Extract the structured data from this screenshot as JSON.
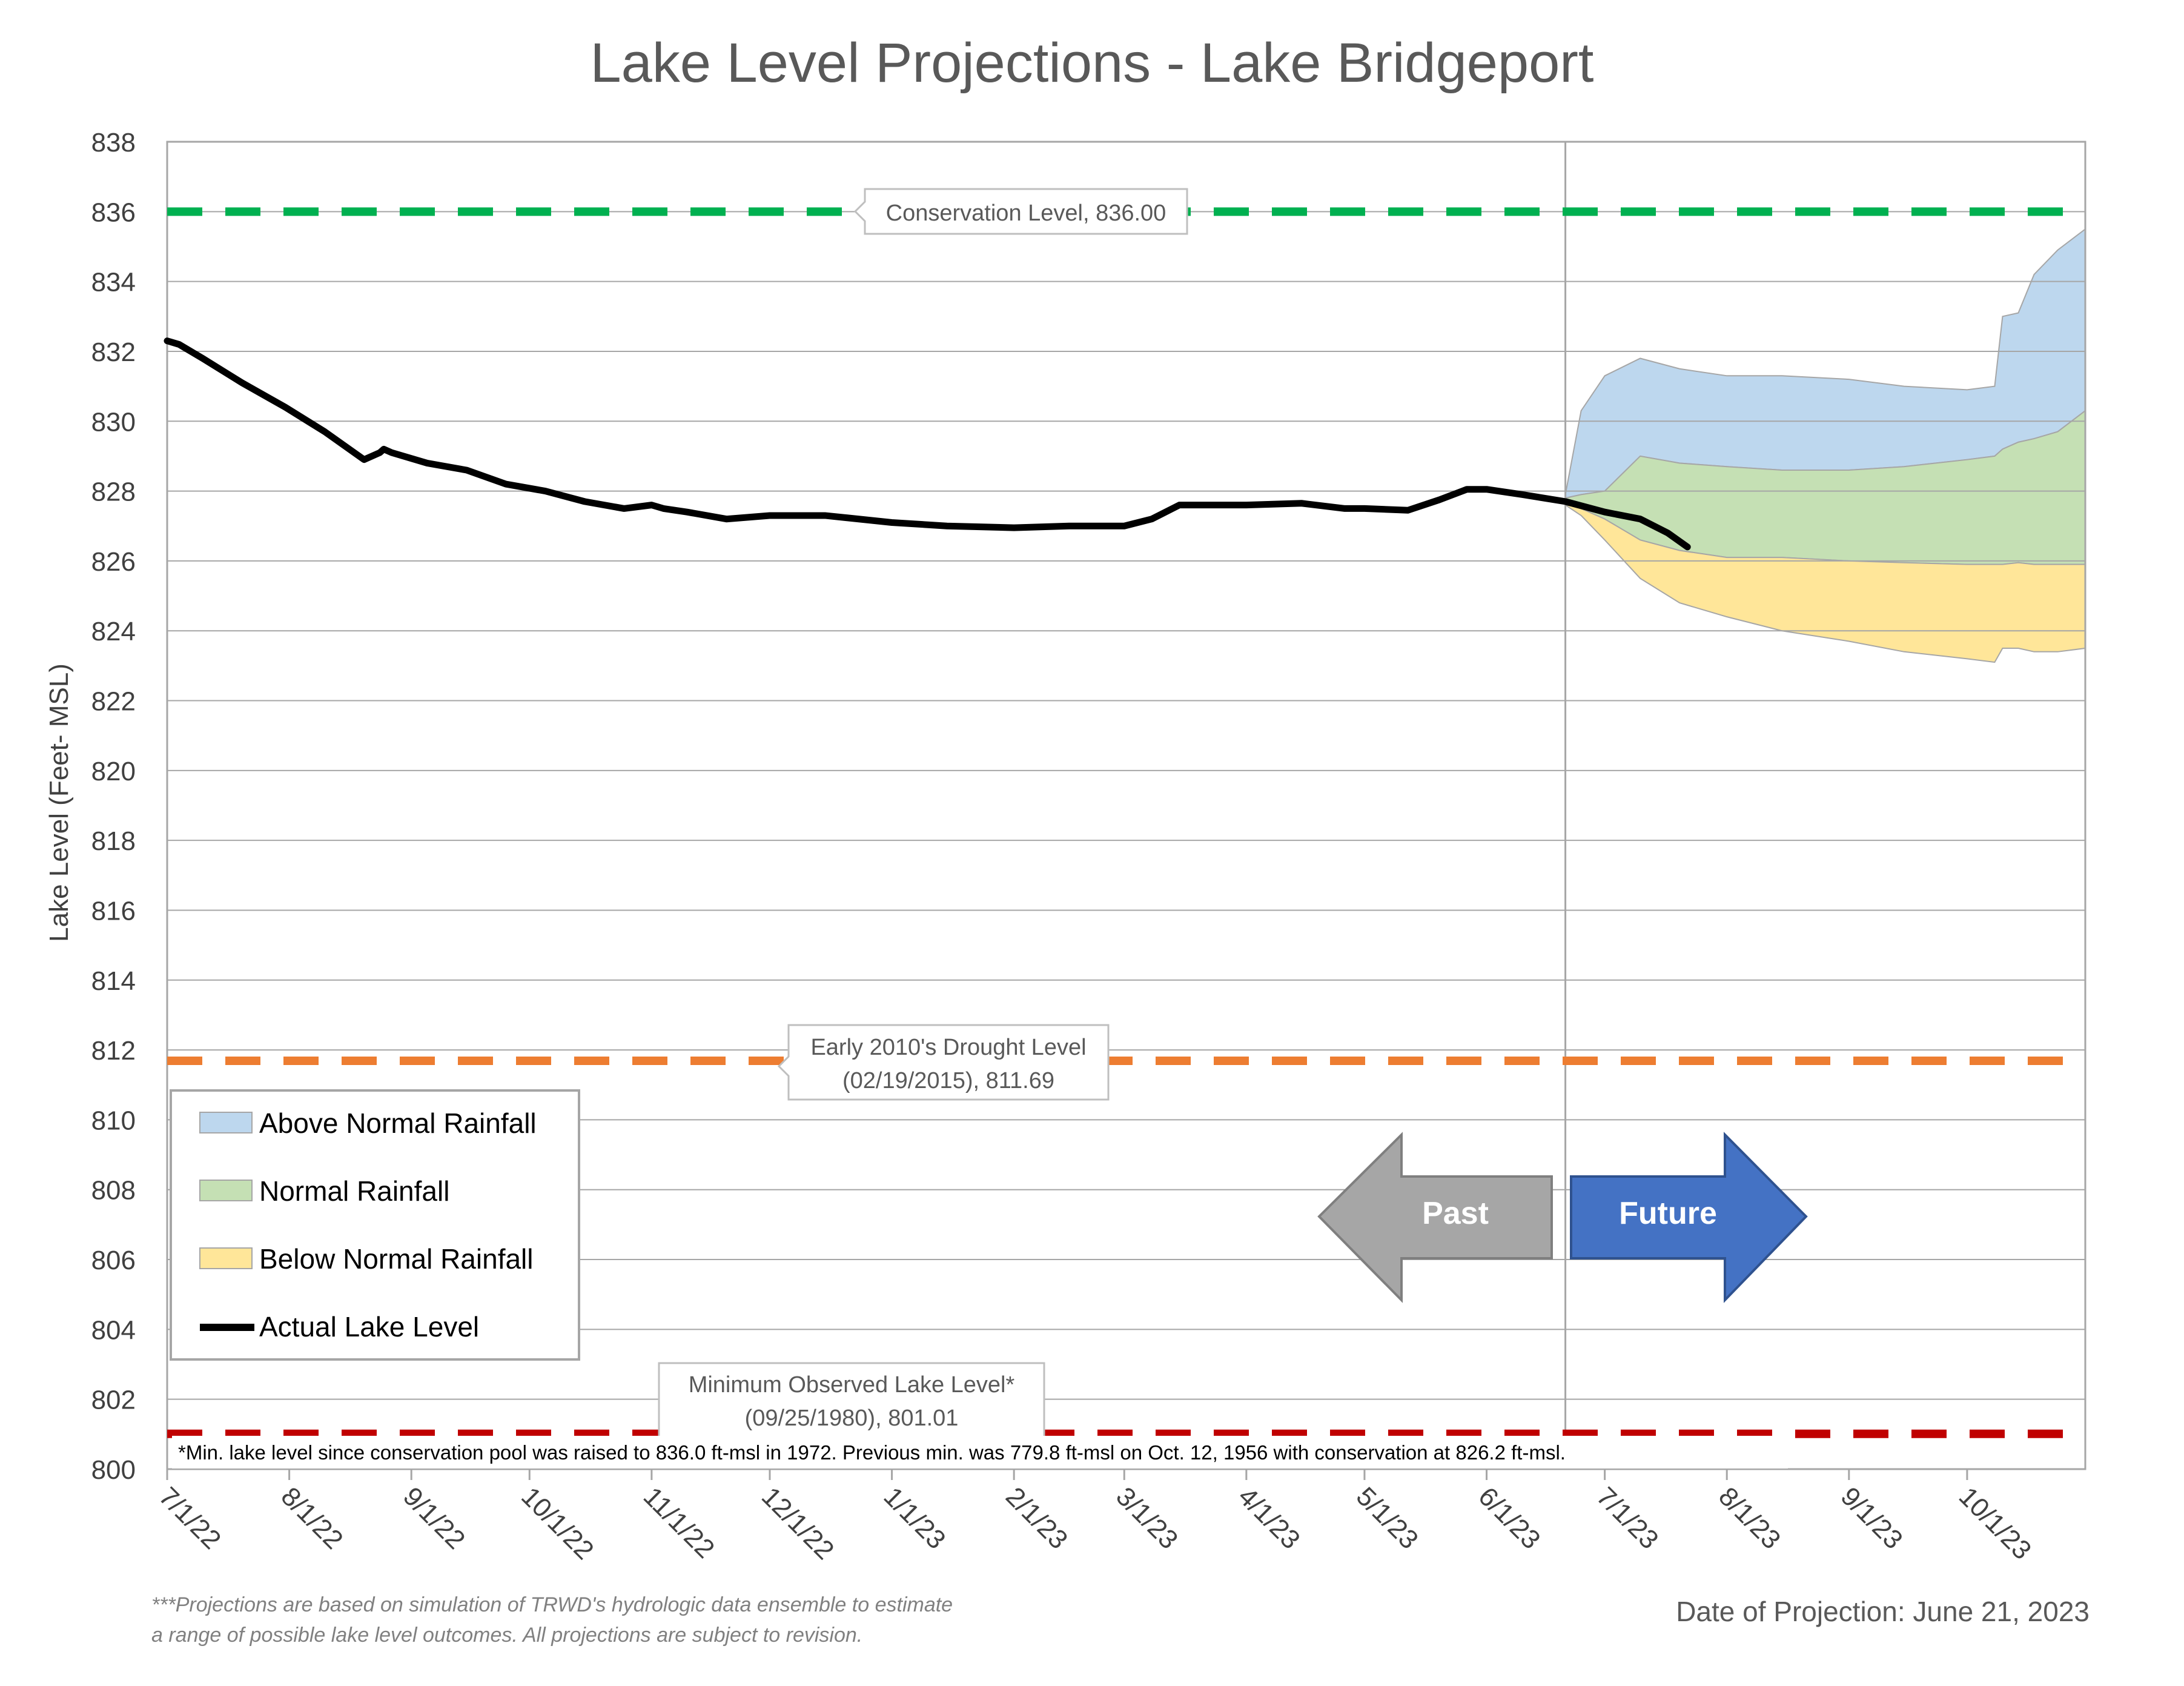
{
  "title": "Lake Level Projections - Lake Bridgeport",
  "ylabel": "Lake Level (Feet- MSL)",
  "y_ticks": [
    "838",
    "836",
    "834",
    "832",
    "830",
    "828",
    "826",
    "824",
    "822",
    "820",
    "818",
    "816",
    "814",
    "812",
    "810",
    "808",
    "806",
    "804",
    "802",
    "800"
  ],
  "x_ticks": [
    "7/1/22",
    "8/1/22",
    "9/1/22",
    "10/1/22",
    "11/1/22",
    "12/1/22",
    "1/1/23",
    "2/1/23",
    "3/1/23",
    "4/1/23",
    "5/1/23",
    "6/1/23",
    "7/1/23",
    "8/1/23",
    "9/1/23",
    "10/1/23"
  ],
  "callouts": {
    "conservation": "Conservation Level, 836.00",
    "drought_line1": "Early 2010's Drought Level",
    "drought_line2": "(02/19/2015), 811.69",
    "minimum_line1": "Minimum Observed Lake Level*",
    "minimum_line2": "(09/25/1980), 801.01"
  },
  "legend": {
    "above": "Above Normal Rainfall",
    "normal": "Normal Rainfall",
    "below": "Below Normal Rainfall",
    "actual": "Actual Lake Level"
  },
  "arrows": {
    "past": "Past",
    "future": "Future"
  },
  "min_note": "*Min. lake level since conservation pool was raised to 836.0 ft-msl in 1972.  Previous min. was 779.8 ft-msl on Oct. 12, 1956 with conservation at 826.2 ft-msl.",
  "footnote_line1": "***Projections are based on simulation of TRWD's hydrologic data ensemble to estimate",
  "footnote_line2": "a range of possible lake level outcomes.  All projections are subject to revision.",
  "projection_date": "Date of Projection: June 21, 2023",
  "colors": {
    "above": "#bdd7ee",
    "normal": "#c5e0b4",
    "below": "#ffe699",
    "actual": "#000000",
    "conservation": "#00b050",
    "drought": "#ed7d31",
    "minimum": "#c00000",
    "past_arrow": "#a6a6a6",
    "future_arrow": "#4472c4"
  },
  "chart_data": {
    "type": "area",
    "ylim": [
      800,
      838
    ],
    "x_range": [
      "2022-07-01",
      "2023-10-31"
    ],
    "reference_lines": [
      {
        "name": "Conservation Level",
        "value": 836.0
      },
      {
        "name": "Early 2010's Drought Level",
        "value": 811.69
      },
      {
        "name": "Minimum Observed Lake Level",
        "value": 801.01
      }
    ],
    "projection_start": "2023-06-21",
    "actual": {
      "x": [
        "2022-07-01",
        "2022-07-04",
        "2022-07-10",
        "2022-07-20",
        "2022-07-31",
        "2022-08-10",
        "2022-08-20",
        "2022-08-24",
        "2022-08-25",
        "2022-08-27",
        "2022-09-05",
        "2022-09-15",
        "2022-09-25",
        "2022-10-05",
        "2022-10-15",
        "2022-10-25",
        "2022-11-01",
        "2022-11-04",
        "2022-11-10",
        "2022-11-20",
        "2022-12-01",
        "2022-12-15",
        "2023-01-01",
        "2023-01-15",
        "2023-02-01",
        "2023-02-15",
        "2023-03-01",
        "2023-03-08",
        "2023-03-15",
        "2023-04-01",
        "2023-04-15",
        "2023-04-26",
        "2023-05-01",
        "2023-05-12",
        "2023-05-20",
        "2023-05-27",
        "2023-06-01",
        "2023-06-10",
        "2023-06-21",
        "2023-07-01",
        "2023-07-10",
        "2023-07-17",
        "2023-07-22"
      ],
      "y": [
        832.3,
        832.2,
        831.8,
        831.1,
        830.4,
        829.7,
        828.9,
        829.1,
        829.2,
        829.1,
        828.8,
        828.6,
        828.2,
        828.0,
        827.7,
        827.5,
        827.6,
        827.5,
        827.4,
        827.2,
        827.3,
        827.3,
        827.1,
        827.0,
        826.95,
        827.0,
        827.0,
        827.2,
        827.6,
        827.6,
        827.65,
        827.5,
        827.5,
        827.45,
        827.75,
        828.05,
        828.05,
        827.9,
        827.7,
        827.4,
        827.2,
        826.8,
        826.4
      ]
    },
    "series": [
      {
        "name": "Above Normal Rainfall",
        "x": [
          "2023-06-21",
          "2023-06-25",
          "2023-07-01",
          "2023-07-10",
          "2023-07-20",
          "2023-08-01",
          "2023-08-15",
          "2023-09-01",
          "2023-09-15",
          "2023-10-01",
          "2023-10-08",
          "2023-10-10",
          "2023-10-14",
          "2023-10-18",
          "2023-10-24",
          "2023-10-31"
        ],
        "upper": [
          827.9,
          830.3,
          831.3,
          831.8,
          831.5,
          831.3,
          831.3,
          831.2,
          831.0,
          830.9,
          831.0,
          833.0,
          833.1,
          834.2,
          834.9,
          835.5
        ],
        "lower": [
          827.8,
          827.9,
          828.0,
          829.0,
          828.8,
          828.7,
          828.6,
          828.6,
          828.7,
          828.9,
          829.0,
          829.2,
          829.4,
          829.5,
          829.7,
          830.3
        ]
      },
      {
        "name": "Normal Rainfall",
        "x": [
          "2023-06-21",
          "2023-06-25",
          "2023-07-01",
          "2023-07-10",
          "2023-07-20",
          "2023-08-01",
          "2023-08-15",
          "2023-09-01",
          "2023-09-15",
          "2023-10-01",
          "2023-10-08",
          "2023-10-10",
          "2023-10-14",
          "2023-10-18",
          "2023-10-24",
          "2023-10-31"
        ],
        "upper": [
          827.8,
          827.9,
          828.0,
          829.0,
          828.8,
          828.7,
          828.6,
          828.6,
          828.7,
          828.9,
          829.0,
          829.2,
          829.4,
          829.5,
          829.7,
          830.3
        ],
        "lower": [
          827.7,
          827.5,
          827.2,
          826.6,
          826.3,
          826.1,
          826.1,
          826.0,
          825.95,
          825.9,
          825.9,
          825.9,
          825.95,
          825.9,
          825.9,
          825.9
        ]
      },
      {
        "name": "Below Normal Rainfall",
        "x": [
          "2023-06-21",
          "2023-06-25",
          "2023-07-01",
          "2023-07-10",
          "2023-07-20",
          "2023-08-01",
          "2023-08-15",
          "2023-09-01",
          "2023-09-15",
          "2023-10-01",
          "2023-10-08",
          "2023-10-10",
          "2023-10-14",
          "2023-10-18",
          "2023-10-24",
          "2023-10-31"
        ],
        "upper": [
          827.7,
          827.5,
          827.2,
          826.6,
          826.3,
          826.1,
          826.1,
          826.0,
          825.95,
          825.9,
          825.9,
          825.9,
          825.95,
          825.9,
          825.9,
          825.9
        ],
        "lower": [
          827.6,
          827.3,
          826.6,
          825.5,
          824.8,
          824.4,
          824.0,
          823.7,
          823.4,
          823.2,
          823.1,
          823.5,
          823.5,
          823.4,
          823.4,
          823.5
        ]
      }
    ]
  }
}
